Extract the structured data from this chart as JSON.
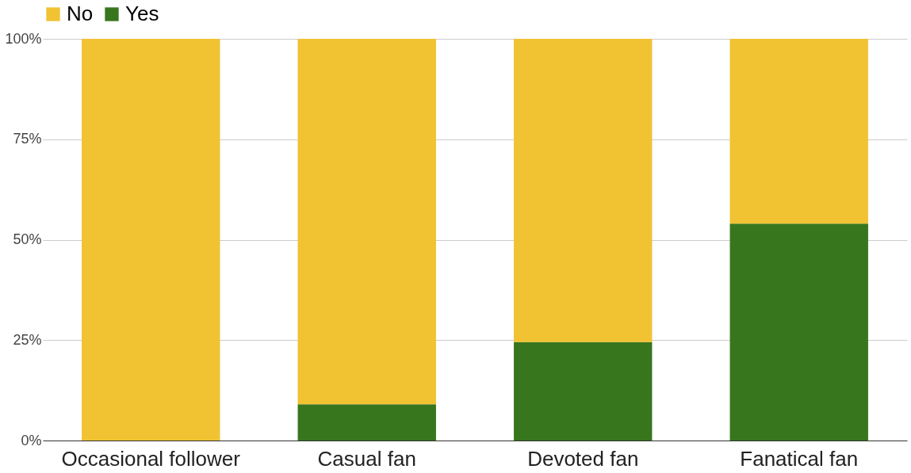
{
  "chart_data": {
    "type": "bar",
    "stacked": true,
    "categories": [
      "Occasional follower",
      "Casual fan",
      "Devoted fan",
      "Fanatical fan"
    ],
    "series": [
      {
        "name": "Yes",
        "color": "#38761d",
        "values": [
          0,
          9,
          24.5,
          54
        ]
      },
      {
        "name": "No",
        "color": "#f1c232",
        "values": [
          100,
          91,
          75.5,
          46
        ]
      }
    ],
    "ylim": [
      0,
      100
    ],
    "yticks": [
      {
        "value": 0,
        "label": "0%"
      },
      {
        "value": 25,
        "label": "25%"
      },
      {
        "value": 50,
        "label": "50%"
      },
      {
        "value": 75,
        "label": "75%"
      },
      {
        "value": 100,
        "label": "100%"
      }
    ],
    "grid": "y",
    "legend": "top"
  }
}
